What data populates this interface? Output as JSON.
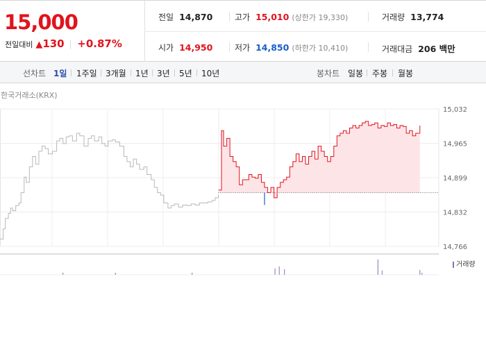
{
  "quote": {
    "price": "15,000",
    "change_label": "전일대비",
    "change_arrow": "▲",
    "change_value": "130",
    "change_pct": "+0.87%",
    "stats": [
      {
        "key": "전일",
        "value": "14,870",
        "color": "#222222"
      },
      {
        "key": "고가",
        "value": "15,010",
        "sub": "(상한가 19,330)",
        "color": "#e0141e"
      },
      {
        "key": "거래량",
        "value": "13,774",
        "color": "#222222"
      },
      {
        "key": "시가",
        "value": "14,950",
        "color": "#e0141e"
      },
      {
        "key": "저가",
        "value": "14,850",
        "sub": "(하한가 10,410)",
        "color": "#1a5ec9"
      },
      {
        "key": "거래대금",
        "value": "206 백만",
        "color": "#222222"
      }
    ]
  },
  "line_tabs": {
    "label": "선차트",
    "items": [
      "1일",
      "1주일",
      "3개월",
      "1년",
      "3년",
      "5년",
      "10년"
    ],
    "active": "1일"
  },
  "candle_tabs": {
    "label": "봉차트",
    "items": [
      "일봉",
      "주봉",
      "월봉"
    ]
  },
  "source_label": "한국거래소(KRX)",
  "volume_legend": "거래량",
  "colors": {
    "up": "#e0141e",
    "down": "#1a5ec9",
    "prev_line": "#b8b8b8",
    "fill": "#fde4e6",
    "volume": "#8a6fb5"
  },
  "chart_data": {
    "type": "line",
    "y_ticks": [
      "15,032",
      "14,965",
      "14,899",
      "14,832",
      "14,766"
    ],
    "ylim": [
      14766,
      15032
    ],
    "base_value": 14870,
    "prev_series": [
      [
        0,
        14780
      ],
      [
        3,
        14800
      ],
      [
        5,
        14820
      ],
      [
        8,
        14830
      ],
      [
        10,
        14840
      ],
      [
        12,
        14835
      ],
      [
        15,
        14845
      ],
      [
        18,
        14850
      ],
      [
        20,
        14870
      ],
      [
        23,
        14900
      ],
      [
        25,
        14890
      ],
      [
        28,
        14920
      ],
      [
        31,
        14940
      ],
      [
        34,
        14925
      ],
      [
        37,
        14950
      ],
      [
        40,
        14960
      ],
      [
        43,
        14955
      ],
      [
        46,
        14945
      ],
      [
        50,
        14950
      ],
      [
        54,
        14970
      ],
      [
        57,
        14975
      ],
      [
        60,
        14965
      ],
      [
        63,
        14978
      ],
      [
        66,
        14980
      ],
      [
        69,
        14970
      ],
      [
        73,
        14985
      ],
      [
        76,
        14980
      ],
      [
        80,
        14960
      ],
      [
        84,
        14975
      ],
      [
        87,
        14980
      ],
      [
        90,
        14970
      ],
      [
        94,
        14978
      ],
      [
        97,
        14965
      ],
      [
        100,
        14960
      ],
      [
        103,
        14970
      ],
      [
        107,
        14972
      ],
      [
        110,
        14968
      ],
      [
        114,
        14960
      ],
      [
        118,
        14940
      ],
      [
        121,
        14930
      ],
      [
        124,
        14920
      ],
      [
        127,
        14935
      ],
      [
        130,
        14925
      ],
      [
        133,
        14915
      ],
      [
        137,
        14920
      ],
      [
        140,
        14905
      ],
      [
        144,
        14895
      ],
      [
        147,
        14880
      ],
      [
        150,
        14870
      ],
      [
        153,
        14865
      ],
      [
        156,
        14850
      ],
      [
        160,
        14840
      ],
      [
        163,
        14845
      ],
      [
        166,
        14848
      ],
      [
        170,
        14842
      ],
      [
        174,
        14846
      ],
      [
        178,
        14845
      ],
      [
        182,
        14848
      ],
      [
        186,
        14846
      ],
      [
        190,
        14850
      ],
      [
        194,
        14850
      ],
      [
        198,
        14852
      ],
      [
        202,
        14855
      ],
      [
        205,
        14860
      ],
      [
        208,
        14866
      ]
    ],
    "today_series": [
      [
        208,
        14875
      ],
      [
        211,
        14990
      ],
      [
        213,
        14960
      ],
      [
        216,
        14975
      ],
      [
        219,
        14940
      ],
      [
        222,
        14930
      ],
      [
        225,
        14920
      ],
      [
        228,
        14885
      ],
      [
        231,
        14895
      ],
      [
        234,
        14895
      ],
      [
        237,
        14905
      ],
      [
        240,
        14900
      ],
      [
        243,
        14898
      ],
      [
        246,
        14905
      ],
      [
        249,
        14890
      ],
      [
        252,
        14880
      ],
      [
        255,
        14870
      ],
      [
        258,
        14880
      ],
      [
        261,
        14860
      ],
      [
        264,
        14880
      ],
      [
        267,
        14890
      ],
      [
        270,
        14895
      ],
      [
        273,
        14900
      ],
      [
        276,
        14920
      ],
      [
        279,
        14930
      ],
      [
        282,
        14945
      ],
      [
        285,
        14930
      ],
      [
        288,
        14940
      ],
      [
        291,
        14925
      ],
      [
        294,
        14940
      ],
      [
        297,
        14950
      ],
      [
        300,
        14935
      ],
      [
        303,
        14960
      ],
      [
        306,
        14950
      ],
      [
        309,
        14940
      ],
      [
        312,
        14930
      ],
      [
        315,
        14940
      ],
      [
        318,
        14960
      ],
      [
        321,
        14980
      ],
      [
        324,
        14985
      ],
      [
        327,
        14990
      ],
      [
        330,
        14985
      ],
      [
        333,
        14995
      ],
      [
        336,
        15000
      ],
      [
        339,
        14995
      ],
      [
        342,
        15000
      ],
      [
        345,
        15005
      ],
      [
        348,
        15008
      ],
      [
        351,
        15000
      ],
      [
        354,
        15002
      ],
      [
        357,
        15005
      ],
      [
        360,
        14995
      ],
      [
        363,
        15000
      ],
      [
        366,
        14998
      ],
      [
        369,
        15005
      ],
      [
        372,
        15000
      ],
      [
        375,
        15002
      ],
      [
        378,
        14995
      ],
      [
        381,
        15000
      ],
      [
        384,
        14998
      ],
      [
        387,
        14985
      ],
      [
        390,
        14990
      ],
      [
        393,
        14980
      ],
      [
        396,
        14985
      ],
      [
        400,
        15000
      ]
    ],
    "x_max": 418,
    "volume_bars": [
      [
        60,
        3
      ],
      [
        110,
        3
      ],
      [
        183,
        3
      ],
      [
        262,
        9
      ],
      [
        266,
        12
      ],
      [
        271,
        8
      ],
      [
        360,
        22
      ],
      [
        364,
        6
      ],
      [
        400,
        7
      ],
      [
        402,
        3
      ]
    ]
  }
}
